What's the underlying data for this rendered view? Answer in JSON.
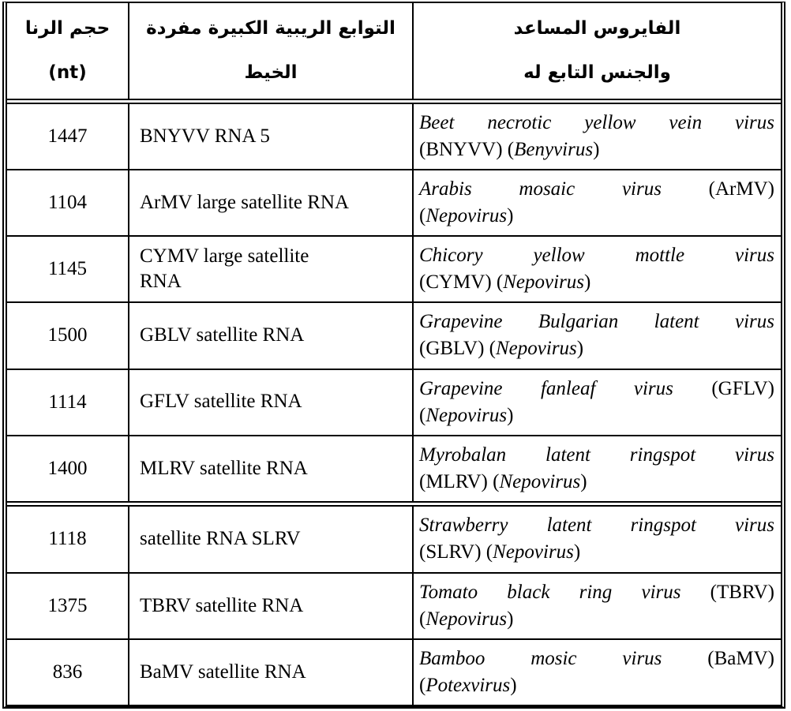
{
  "colors": {
    "border": "#000000",
    "text": "#000000",
    "background": "#ffffff"
  },
  "table": {
    "headers": {
      "size_line1": "حجم الرنا",
      "size_line2": "(nt)",
      "satellite_line1": "التوابع الريبية الكبيرة مفردة",
      "satellite_line2": "الخيط",
      "virus_line1": "الفايروس المساعد",
      "virus_line2": "والجنس التابع له"
    },
    "rows": [
      {
        "size": "1447",
        "satellite_lines": [
          "BNYVV RNA 5"
        ],
        "virus_line1": [
          {
            "t": "Beet necrotic yellow vein virus",
            "s": "i"
          }
        ],
        "virus_line2": [
          {
            "t": "(BNYVV) (",
            "s": "r"
          },
          {
            "t": "Benyvirus",
            "s": "i"
          },
          {
            "t": ")",
            "s": "r"
          }
        ]
      },
      {
        "size": "1104",
        "satellite_lines": [
          "ArMV large satellite RNA"
        ],
        "virus_line1": [
          {
            "t": "Arabis mosaic virus",
            "s": "i"
          },
          {
            "t": " (ArMV)",
            "s": "r"
          }
        ],
        "virus_line2": [
          {
            "t": "(",
            "s": "r"
          },
          {
            "t": "Nepovirus",
            "s": "i"
          },
          {
            "t": ")",
            "s": "r"
          }
        ]
      },
      {
        "size": "1145",
        "satellite_lines": [
          "CYMV large satellite",
          "RNA"
        ],
        "virus_line1": [
          {
            "t": "Chicory yellow mottle virus",
            "s": "i"
          }
        ],
        "virus_line2": [
          {
            "t": "(CYMV) (",
            "s": "r"
          },
          {
            "t": "Nepovirus",
            "s": "i"
          },
          {
            "t": ")",
            "s": "r"
          }
        ]
      },
      {
        "size": "1500",
        "satellite_lines": [
          "GBLV satellite RNA"
        ],
        "virus_line1": [
          {
            "t": "Grapevine Bulgarian latent virus",
            "s": "i"
          }
        ],
        "virus_line2": [
          {
            "t": "(GBLV) (",
            "s": "r"
          },
          {
            "t": "Nepovirus",
            "s": "i"
          },
          {
            "t": ")",
            "s": "r"
          }
        ]
      },
      {
        "size": "1114",
        "satellite_lines": [
          "GFLV satellite RNA"
        ],
        "virus_line1": [
          {
            "t": "Grapevine fanleaf virus",
            "s": "i"
          },
          {
            "t": " (GFLV)",
            "s": "r"
          }
        ],
        "virus_line2": [
          {
            "t": "(",
            "s": "r"
          },
          {
            "t": "Nepovirus",
            "s": "i"
          },
          {
            "t": ")",
            "s": "r"
          }
        ]
      },
      {
        "size": "1400",
        "satellite_lines": [
          "MLRV satellite RNA"
        ],
        "virus_line1": [
          {
            "t": "Myrobalan latent ringspot virus",
            "s": "i"
          }
        ],
        "virus_line2": [
          {
            "t": "(MLRV) (",
            "s": "r"
          },
          {
            "t": "Nepovirus",
            "s": "i"
          },
          {
            "t": ")",
            "s": "r"
          }
        ]
      },
      {
        "size": "1118",
        "satellite_lines": [
          "satellite RNA SLRV"
        ],
        "virus_line1": [
          {
            "t": "Strawberry latent ringspot virus",
            "s": "i"
          }
        ],
        "virus_line2": [
          {
            "t": "(SLRV) (",
            "s": "r"
          },
          {
            "t": "Nepovirus",
            "s": "i"
          },
          {
            "t": ")",
            "s": "r"
          }
        ]
      },
      {
        "size": "1375",
        "satellite_lines": [
          "TBRV satellite RNA"
        ],
        "virus_line1": [
          {
            "t": "Tomato black ring virus",
            "s": "i"
          },
          {
            "t": " (TBRV)",
            "s": "r"
          }
        ],
        "virus_line2": [
          {
            "t": "(",
            "s": "r"
          },
          {
            "t": "Nepovirus",
            "s": "i"
          },
          {
            "t": ")",
            "s": "r"
          }
        ]
      },
      {
        "size": "836",
        "satellite_lines": [
          "BaMV satellite RNA"
        ],
        "virus_line1": [
          {
            "t": "Bamboo mosic virus",
            "s": "i"
          },
          {
            "t": " (BaMV)",
            "s": "r"
          }
        ],
        "virus_line2": [
          {
            "t": "(",
            "s": "r"
          },
          {
            "t": "Potexvirus",
            "s": "i"
          },
          {
            "t": ")",
            "s": "r"
          }
        ]
      }
    ]
  }
}
